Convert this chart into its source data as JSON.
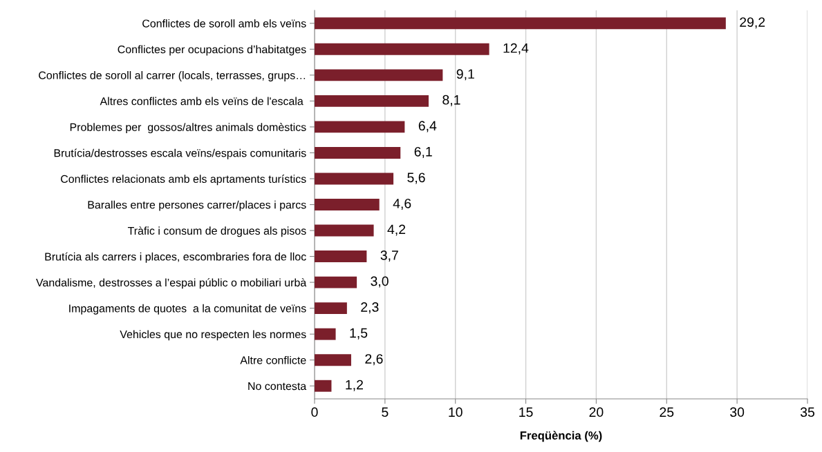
{
  "chart_data": {
    "type": "bar",
    "orientation": "horizontal",
    "xlabel": "Freqüència (%)",
    "categories": [
      "Conflictes de soroll amb els veïns",
      "Conflictes per ocupacions d’habitatges",
      "Conflictes de soroll al carrer (locals, terrasses, grups…",
      "Altres conflictes amb els veïns de l'escala ",
      "Problemes per  gossos/altres animals domèstics",
      "Brutícia/destrosses escala veïns/espais comunitaris",
      "Conflictes relacionats amb els aprtaments turístics",
      "Baralles entre persones carrer/places i parcs",
      "Tràfic i consum de drogues als pisos",
      "Brutícia als carrers i places, escombraries fora de lloc",
      "Vandalisme, destrosses a l’espai públic o mobiliari urbà",
      "Impagaments de quotes  a la comunitat de veïns",
      "Vehicles que no respecten les normes",
      "Altre conflicte",
      "No contesta"
    ],
    "values": [
      29.2,
      12.4,
      9.1,
      8.1,
      6.4,
      6.1,
      5.6,
      4.6,
      4.2,
      3.7,
      3.0,
      2.3,
      1.5,
      2.6,
      1.2
    ],
    "value_labels": [
      "29,2",
      "12,4",
      "9,1",
      "8,1",
      "6,4",
      "6,1",
      "5,6",
      "4,6",
      "4,2",
      "3,7",
      "3,0",
      "2,3",
      "1,5",
      "2,6",
      "1,2"
    ],
    "color": "#7b1f2b",
    "xlim": [
      0,
      35
    ],
    "xticks": [
      0,
      5,
      10,
      15,
      20,
      25,
      30,
      35
    ],
    "grid": "x"
  }
}
